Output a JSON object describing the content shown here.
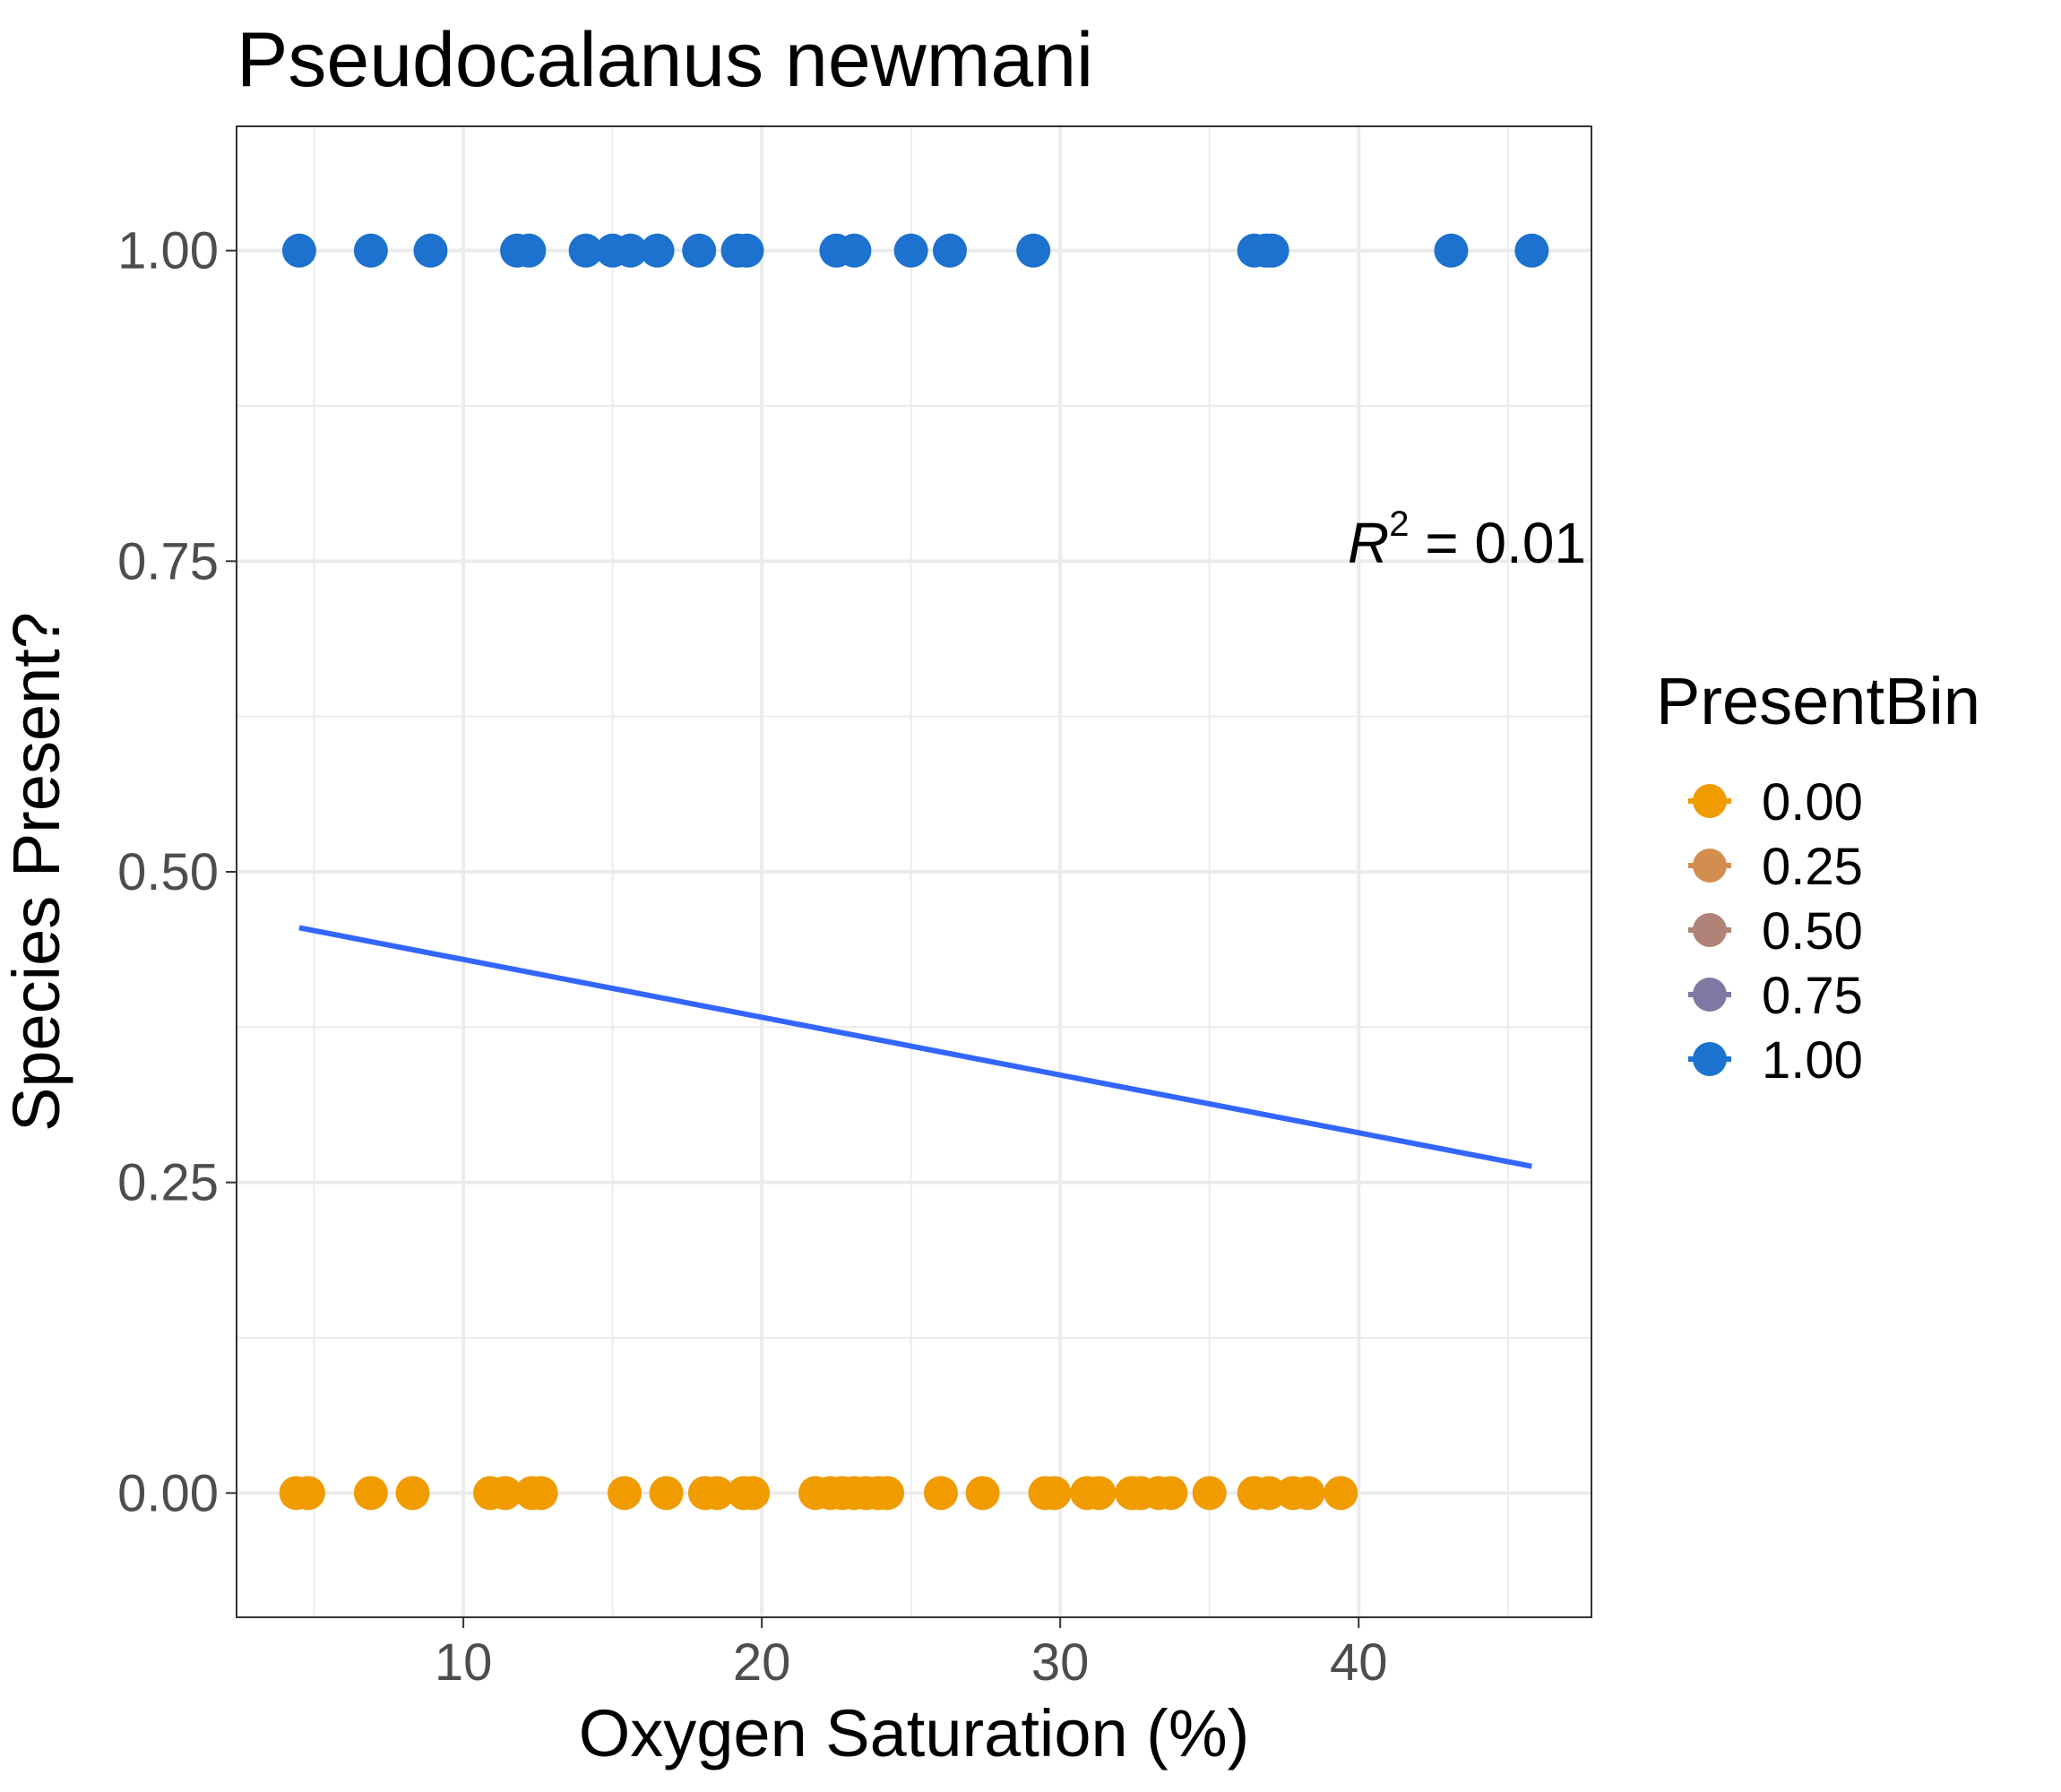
{
  "chart_data": {
    "type": "scatter",
    "title": "Pseudocalanus newmani",
    "xlabel": "Oxygen Saturation (%)",
    "ylabel": "Species Present?",
    "xlim": [
      2.4,
      47.8
    ],
    "ylim": [
      -0.1,
      1.1
    ],
    "x_ticks": [
      10,
      20,
      30,
      40
    ],
    "x_tick_labels": [
      "10",
      "20",
      "30",
      "40"
    ],
    "y_ticks": [
      0,
      0.25,
      0.5,
      0.75,
      1.0
    ],
    "y_tick_labels": [
      "0.00",
      "0.25",
      "0.50",
      "0.75",
      "1.00"
    ],
    "grid": true,
    "legend_position": "right",
    "annotation": {
      "prefix": "R",
      "superscript": "2",
      "text": " = 0.01"
    },
    "legend": {
      "title": "PresentBin",
      "entries": [
        {
          "label": "0.00",
          "color": "#F09B00"
        },
        {
          "label": "0.25",
          "color": "#D28E4E"
        },
        {
          "label": "0.50",
          "color": "#B08378"
        },
        {
          "label": "0.75",
          "color": "#8078A3"
        },
        {
          "label": "1.00",
          "color": "#1C72CE"
        }
      ]
    },
    "series": [
      {
        "name": "1.00",
        "color": "#1C72CE",
        "points": [
          [
            4.5,
            1
          ],
          [
            6.9,
            1
          ],
          [
            8.9,
            1
          ],
          [
            11.8,
            1
          ],
          [
            12.2,
            1
          ],
          [
            14.1,
            1
          ],
          [
            15.0,
            1
          ],
          [
            15.6,
            1
          ],
          [
            16.5,
            1
          ],
          [
            17.9,
            1
          ],
          [
            19.2,
            1
          ],
          [
            19.5,
            1
          ],
          [
            22.5,
            1
          ],
          [
            23.1,
            1
          ],
          [
            25.0,
            1
          ],
          [
            26.3,
            1
          ],
          [
            29.1,
            1
          ],
          [
            36.5,
            1
          ],
          [
            36.9,
            1
          ],
          [
            37.1,
            1
          ],
          [
            43.1,
            1
          ],
          [
            45.8,
            1
          ]
        ]
      },
      {
        "name": "0.00",
        "color": "#F09B00",
        "points": [
          [
            4.4,
            0
          ],
          [
            4.8,
            0
          ],
          [
            6.9,
            0
          ],
          [
            8.3,
            0
          ],
          [
            10.9,
            0
          ],
          [
            11.4,
            0
          ],
          [
            12.3,
            0
          ],
          [
            12.6,
            0
          ],
          [
            15.4,
            0
          ],
          [
            16.8,
            0
          ],
          [
            18.1,
            0
          ],
          [
            18.5,
            0
          ],
          [
            19.4,
            0
          ],
          [
            19.7,
            0
          ],
          [
            21.8,
            0
          ],
          [
            22.3,
            0
          ],
          [
            22.7,
            0
          ],
          [
            23.1,
            0
          ],
          [
            23.5,
            0
          ],
          [
            23.9,
            0
          ],
          [
            24.2,
            0
          ],
          [
            26.0,
            0
          ],
          [
            27.4,
            0
          ],
          [
            29.5,
            0
          ],
          [
            29.8,
            0
          ],
          [
            30.9,
            0
          ],
          [
            31.3,
            0
          ],
          [
            32.4,
            0
          ],
          [
            32.7,
            0
          ],
          [
            33.3,
            0
          ],
          [
            33.7,
            0
          ],
          [
            35.0,
            0
          ],
          [
            36.5,
            0
          ],
          [
            37.0,
            0
          ],
          [
            37.8,
            0
          ],
          [
            38.3,
            0
          ],
          [
            39.4,
            0
          ]
        ]
      }
    ],
    "fit_line": {
      "color": "#3366FF",
      "x": [
        4.5,
        45.8
      ],
      "y": [
        0.455,
        0.263
      ]
    }
  }
}
